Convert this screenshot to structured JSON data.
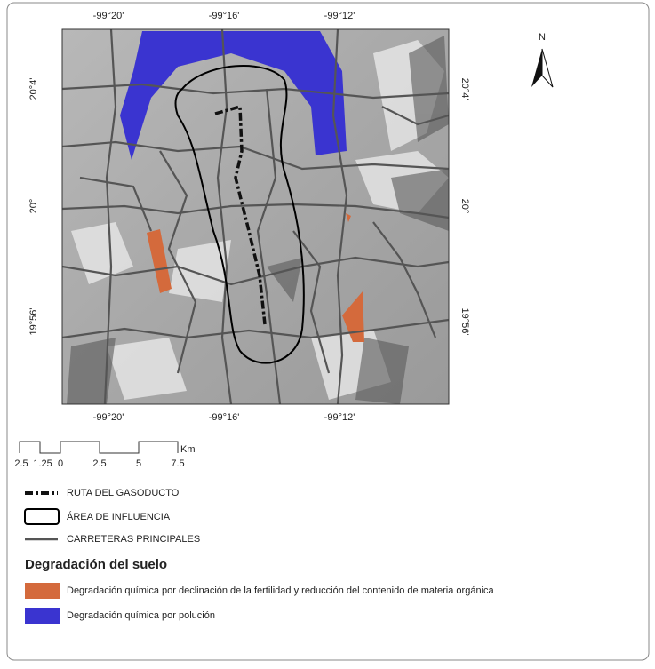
{
  "map": {
    "top_labels": [
      "-99°20'",
      "-99°16'",
      "-99°12'"
    ],
    "bottom_labels": [
      "-99°20'",
      "-99°16'",
      "-99°12'"
    ],
    "left_labels": [
      "20°4'",
      "20°",
      "19°56'"
    ],
    "right_labels": [
      "20°4'",
      "20°",
      "19°56'"
    ],
    "north": "N"
  },
  "scale_bar": {
    "labels": [
      "2.5",
      "1.25",
      "0",
      "2.5",
      "5",
      "7.5"
    ],
    "unit": "Km"
  },
  "legend": {
    "items": [
      "RUTA DEL GASODUCTO",
      "ÁREA DE INFLUENCIA",
      "CARRETERAS PRINCIPALES"
    ],
    "section_title": "Degradación del suelo",
    "degradation": [
      "Degradación química por declinación de la fertilidad y reducción del contenido de materia orgánica",
      "Degradación química por polución"
    ]
  }
}
